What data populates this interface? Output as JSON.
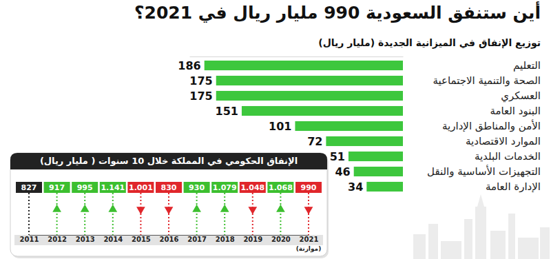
{
  "chart_data": [
    {
      "type": "bar",
      "title": "أين ستنفق السعودية 990 مليار ريال في 2021؟",
      "subtitle": "توزيع الإنفاق في الميزانية الجديدة (مليار ريال)",
      "orientation": "horizontal",
      "categories": [
        "التعليم",
        "الصحة والتنمية الاجتماعية",
        "العسكري",
        "البنود العامة",
        "الأمن والمناطق الإدارية",
        "الموارد الاقتصادية",
        "الخدمات البلدية",
        "التجهيزات الأساسية والنقل",
        "الإدارة العامة"
      ],
      "values": [
        186,
        175,
        175,
        151,
        101,
        72,
        51,
        46,
        34
      ],
      "color": "#3dc73d",
      "xlim": [
        0,
        200
      ],
      "xticks": [],
      "grid": false,
      "data_labels": true,
      "tick_labels": "y"
    },
    {
      "type": "timeline",
      "title": "الإنفاق الحكومي في المملكة خلال 10 سنوات ( مليار ريال)",
      "categories": [
        "2011",
        "2012",
        "2013",
        "2014",
        "2015",
        "2016",
        "2017",
        "2018",
        "2019",
        "2020",
        "2021"
      ],
      "values": [
        827,
        917,
        995,
        1141,
        1001,
        830,
        930,
        1079,
        1048,
        1068,
        990
      ],
      "value_labels": [
        "827",
        "917",
        "995",
        "1.141",
        "1.001",
        "830",
        "930",
        "1.079",
        "1.048",
        "1.068",
        "990"
      ],
      "colors": [
        "#222222",
        "#3cbf2f",
        "#3cbf2f",
        "#3cbf2f",
        "#e0262b",
        "#e0262b",
        "#3cbf2f",
        "#3cbf2f",
        "#e0262b",
        "#3cbf2f",
        "#e0262b"
      ],
      "data_labels": true,
      "tick_labels": "x",
      "annotations": [
        {
          "category": "2021",
          "text": "(موازنة)"
        }
      ]
    }
  ]
}
